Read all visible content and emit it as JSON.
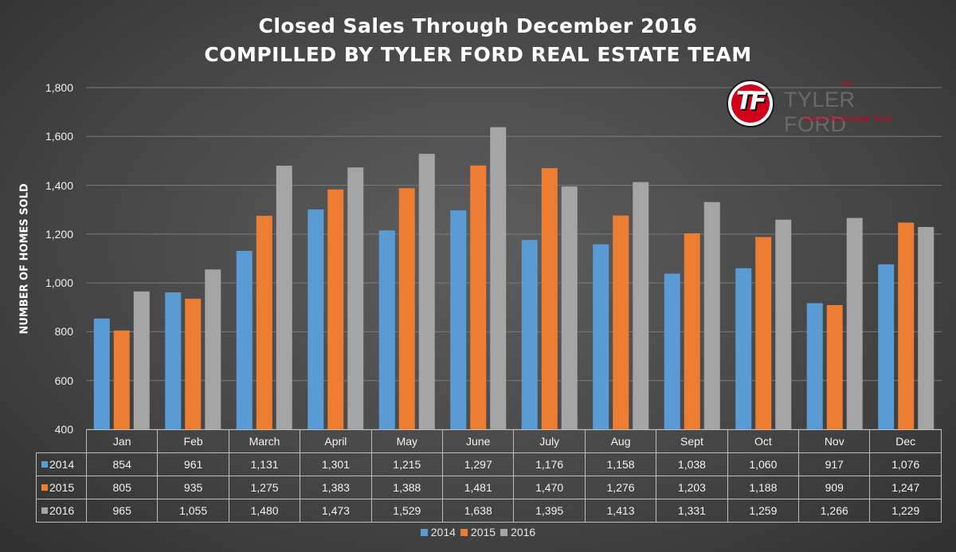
{
  "chart_data": {
    "type": "bar",
    "title": "Closed Sales Through December 2016",
    "subtitle": "COMPILLED BY TYLER FORD REAL ESTATE TEAM",
    "xlabel": "",
    "ylabel": "NUMBER OF HOMES SOLD",
    "ylim": [
      400,
      1800
    ],
    "yticks": [
      "400",
      "600",
      "800",
      "1,000",
      "1,200",
      "1,400",
      "1,600",
      "1,800"
    ],
    "ytick_values": [
      400,
      600,
      800,
      1000,
      1200,
      1400,
      1600,
      1800
    ],
    "grid": true,
    "legend_position": "bottom",
    "categories": [
      "Jan",
      "Feb",
      "March",
      "April",
      "May",
      "June",
      "July",
      "Aug",
      "Sept",
      "Oct",
      "Nov",
      "Dec"
    ],
    "series": [
      {
        "name": "2014",
        "color": "#5b9bd5",
        "values": [
          854,
          961,
          1131,
          1301,
          1215,
          1297,
          1176,
          1158,
          1038,
          1060,
          917,
          1076
        ],
        "labels": [
          "854",
          "961",
          "1,131",
          "1,301",
          "1,215",
          "1,297",
          "1,176",
          "1,158",
          "1,038",
          "1,060",
          "917",
          "1,076"
        ]
      },
      {
        "name": "2015",
        "color": "#ed7d31",
        "values": [
          805,
          935,
          1275,
          1383,
          1388,
          1481,
          1470,
          1276,
          1203,
          1188,
          909,
          1247
        ],
        "labels": [
          "805",
          "935",
          "1,275",
          "1,383",
          "1,388",
          "1,481",
          "1,470",
          "1,276",
          "1,203",
          "1,188",
          "909",
          "1,247"
        ]
      },
      {
        "name": "2016",
        "color": "#a5a5a5",
        "values": [
          965,
          1055,
          1480,
          1473,
          1529,
          1638,
          1395,
          1413,
          1331,
          1259,
          1266,
          1229
        ],
        "labels": [
          "965",
          "1,055",
          "1,480",
          "1,473",
          "1,529",
          "1,638",
          "1,395",
          "1,413",
          "1,331",
          "1,259",
          "1,266",
          "1,229"
        ]
      }
    ]
  },
  "logo": {
    "monogram": "TF",
    "the": "The",
    "brand": "TYLER FORD",
    "tagline": "Tucson Real Estate Team",
    "accent_color": "#d0021b"
  }
}
